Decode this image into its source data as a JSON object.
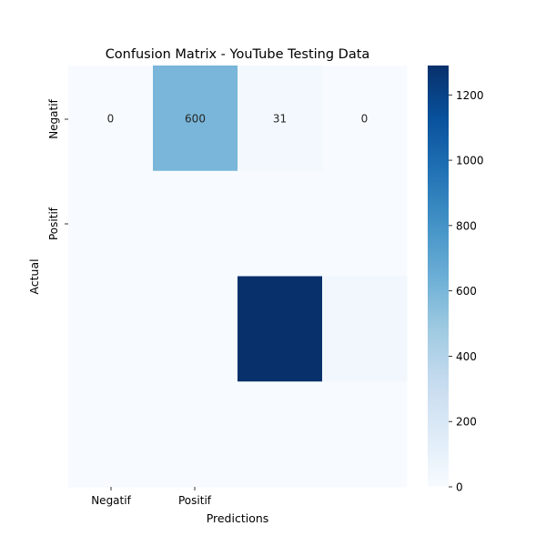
{
  "chart_data": {
    "type": "heatmap",
    "title": "Confusion Matrix - YouTube Testing Data",
    "xlabel": "Predictions",
    "ylabel": "Actual",
    "x_tick_labels": [
      "Negatif",
      "Positif"
    ],
    "y_tick_labels": [
      "Negatif",
      "Positif"
    ],
    "grid_rows": 4,
    "grid_cols": 4,
    "values": [
      [
        0,
        600,
        31,
        0
      ],
      [
        0,
        0,
        0,
        0
      ],
      [
        0,
        0,
        1290,
        40
      ],
      [
        0,
        0,
        0,
        0
      ]
    ],
    "annotated_cells": [
      {
        "row": 0,
        "col": 0,
        "text": "0"
      },
      {
        "row": 0,
        "col": 1,
        "text": "600"
      },
      {
        "row": 0,
        "col": 2,
        "text": "31"
      },
      {
        "row": 0,
        "col": 3,
        "text": "0"
      }
    ],
    "colormap": "Blues",
    "colorbar": {
      "min": 0,
      "max": 1290,
      "ticks": [
        0,
        200,
        400,
        600,
        800,
        1000,
        1200
      ]
    },
    "grid": false
  }
}
